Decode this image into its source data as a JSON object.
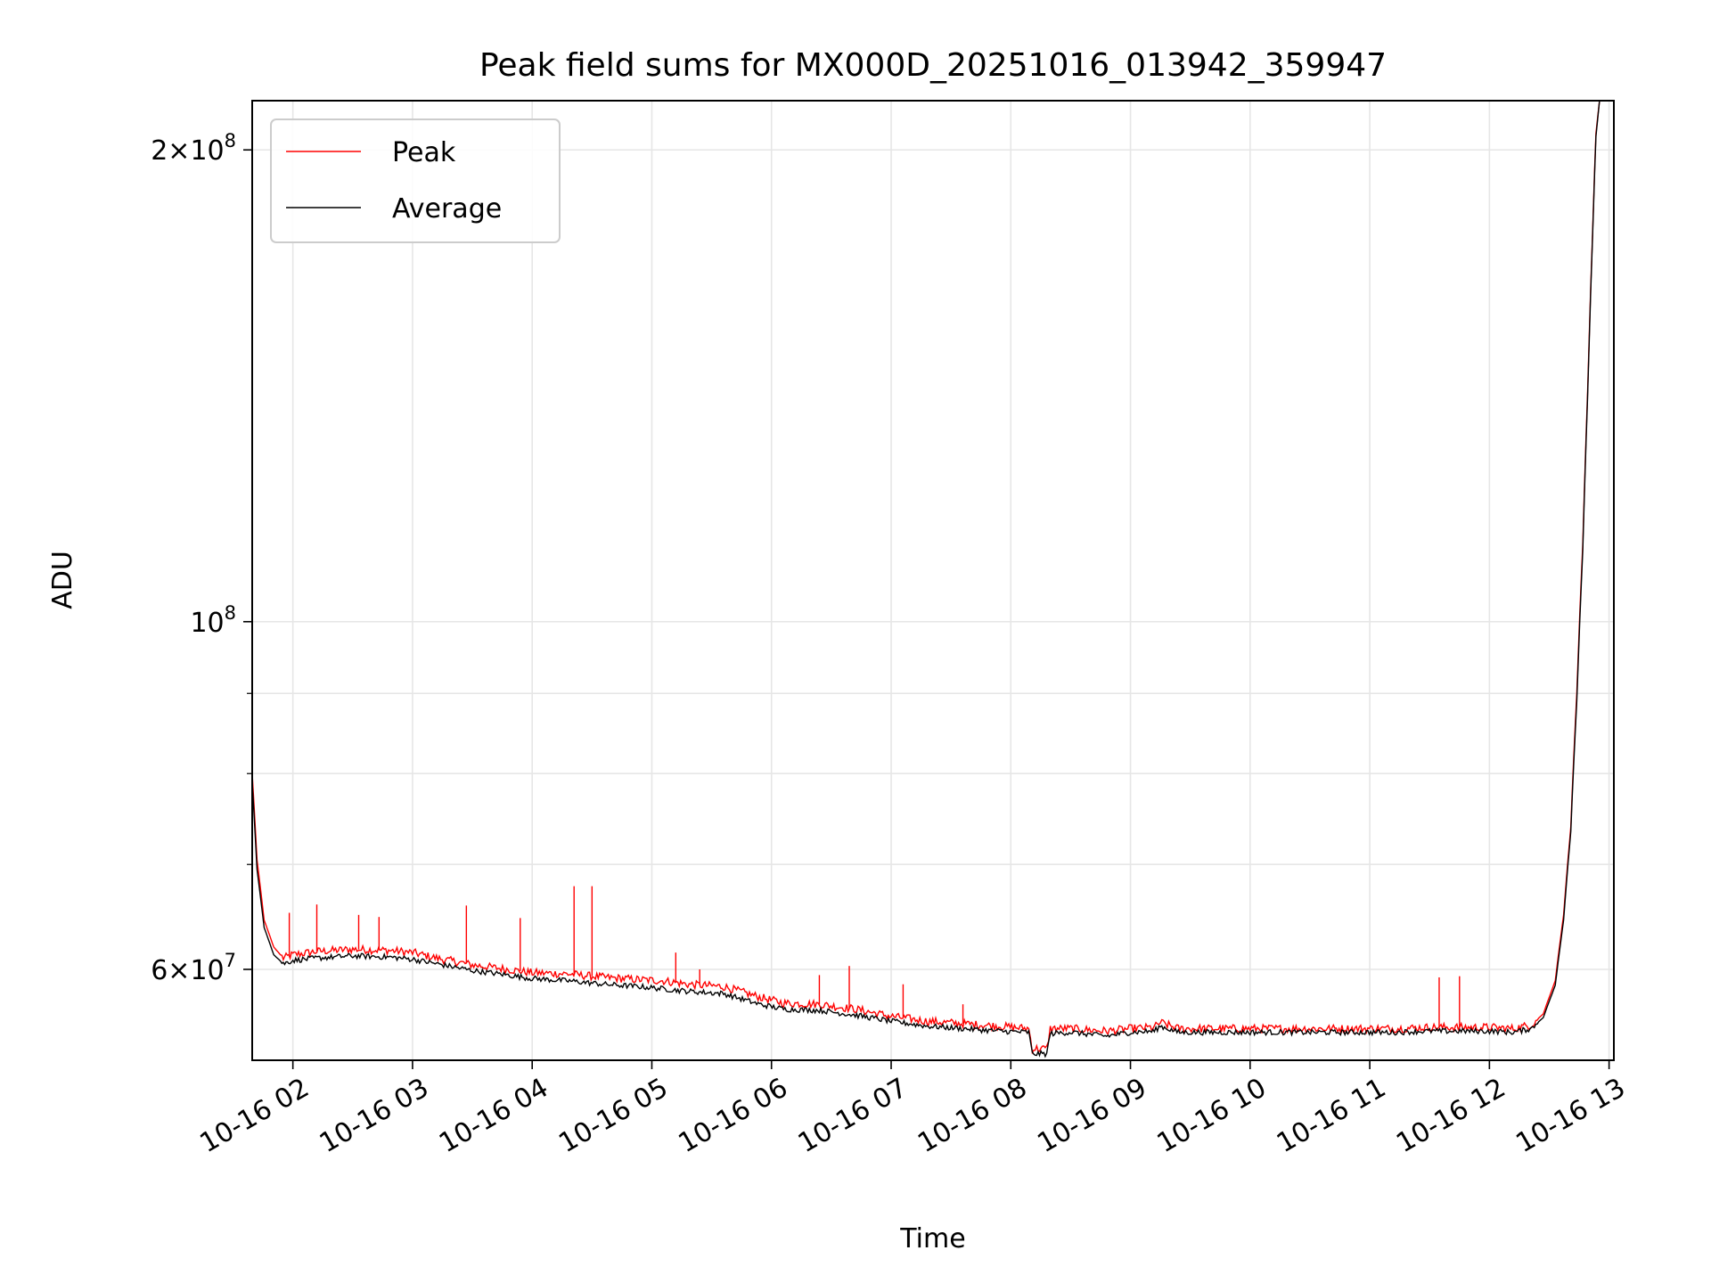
{
  "chart_data": {
    "type": "line",
    "title": "Peak field sums for MX000D_20251016_013942_359947",
    "xlabel": "Time",
    "ylabel": "ADU",
    "yscale": "log",
    "xlim": [
      1.66,
      13.04
    ],
    "ylim": [
      52500000,
      215000000
    ],
    "grid": true,
    "legend_position": "upper-left",
    "x_ticks": [
      {
        "value": 2,
        "label": "10-16 02"
      },
      {
        "value": 3,
        "label": "10-16 03"
      },
      {
        "value": 4,
        "label": "10-16 04"
      },
      {
        "value": 5,
        "label": "10-16 05"
      },
      {
        "value": 6,
        "label": "10-16 06"
      },
      {
        "value": 7,
        "label": "10-16 07"
      },
      {
        "value": 8,
        "label": "10-16 08"
      },
      {
        "value": 9,
        "label": "10-16 09"
      },
      {
        "value": 10,
        "label": "10-16 10"
      },
      {
        "value": 11,
        "label": "10-16 11"
      },
      {
        "value": 12,
        "label": "10-16 12"
      },
      {
        "value": 13,
        "label": "10-16 13"
      }
    ],
    "y_ticks_major": [
      {
        "value": 60000000,
        "mantissa": "6",
        "base": "10",
        "exp": "7"
      },
      {
        "value": 100000000,
        "mantissa": "",
        "base": "10",
        "exp": "8"
      },
      {
        "value": 200000000,
        "mantissa": "2",
        "base": "10",
        "exp": "8"
      }
    ],
    "y_ticks_minor": [
      70000000,
      80000000,
      90000000
    ],
    "series": [
      {
        "name": "Peak",
        "color": "#ff0000",
        "x": [
          1.66,
          1.7,
          1.76,
          1.84,
          1.92,
          2.0,
          2.2,
          2.5,
          2.8,
          3.0,
          3.2,
          3.5,
          3.8,
          4.0,
          4.3,
          4.6,
          4.9,
          5.1,
          5.3,
          5.6,
          5.9,
          6.1,
          6.4,
          6.7,
          7.0,
          7.3,
          7.6,
          7.9,
          8.15,
          8.18,
          8.3,
          8.33,
          8.5,
          8.8,
          9.0,
          9.2,
          9.25,
          9.4,
          9.7,
          10.0,
          10.3,
          10.6,
          10.9,
          11.2,
          11.5,
          11.8,
          12.0,
          12.2,
          12.35,
          12.45,
          12.55,
          12.62,
          12.68,
          12.73,
          12.78,
          12.82,
          12.86,
          12.89,
          12.92
        ],
        "values": [
          80000000,
          70500000,
          64500000,
          62000000,
          61000000,
          61300000,
          61600000,
          61800000,
          61700000,
          61500000,
          61000000,
          60400000,
          60000000,
          59700000,
          59600000,
          59300000,
          59100000,
          59000000,
          58700000,
          58500000,
          57600000,
          57100000,
          57000000,
          56600000,
          56000000,
          55600000,
          55400000,
          55200000,
          55000000,
          53400000,
          53400000,
          55000000,
          55000000,
          54800000,
          55000000,
          55100000,
          55500000,
          55000000,
          55000000,
          55000000,
          55000000,
          55000000,
          55000000,
          55000000,
          55100000,
          55100000,
          55100000,
          55000000,
          55300000,
          56200000,
          59000000,
          65000000,
          74000000,
          90000000,
          112000000,
          140000000,
          175000000,
          205000000,
          215000000
        ],
        "spikes": [
          {
            "x": 1.97,
            "value": 65200000
          },
          {
            "x": 2.2,
            "value": 66000000
          },
          {
            "x": 2.55,
            "value": 65000000
          },
          {
            "x": 2.72,
            "value": 64800000
          },
          {
            "x": 3.45,
            "value": 65900000
          },
          {
            "x": 3.9,
            "value": 64700000
          },
          {
            "x": 4.35,
            "value": 67800000
          },
          {
            "x": 4.5,
            "value": 67800000
          },
          {
            "x": 5.2,
            "value": 61500000
          },
          {
            "x": 5.4,
            "value": 60000000
          },
          {
            "x": 6.4,
            "value": 59500000
          },
          {
            "x": 6.65,
            "value": 60300000
          },
          {
            "x": 7.1,
            "value": 58700000
          },
          {
            "x": 7.6,
            "value": 57000000
          },
          {
            "x": 11.58,
            "value": 59300000
          },
          {
            "x": 11.75,
            "value": 59400000
          }
        ]
      },
      {
        "name": "Average",
        "color": "#000000",
        "x": [
          1.66,
          1.7,
          1.76,
          1.84,
          1.92,
          2.0,
          2.2,
          2.5,
          2.8,
          3.0,
          3.2,
          3.5,
          3.8,
          4.0,
          4.3,
          4.6,
          4.9,
          5.1,
          5.3,
          5.6,
          5.9,
          6.1,
          6.4,
          6.7,
          7.0,
          7.3,
          7.6,
          7.9,
          8.15,
          8.18,
          8.3,
          8.33,
          8.5,
          8.8,
          9.0,
          9.2,
          9.25,
          9.4,
          9.7,
          10.0,
          10.3,
          10.6,
          10.9,
          11.2,
          11.5,
          11.8,
          12.0,
          12.2,
          12.35,
          12.45,
          12.55,
          12.62,
          12.68,
          12.73,
          12.78,
          12.82,
          12.86,
          12.89,
          12.92
        ],
        "values": [
          79000000,
          69500000,
          63800000,
          61300000,
          60500000,
          60800000,
          61000000,
          61200000,
          61100000,
          60900000,
          60500000,
          59900000,
          59500000,
          59200000,
          59000000,
          58700000,
          58500000,
          58300000,
          58100000,
          57900000,
          57000000,
          56600000,
          56500000,
          56100000,
          55600000,
          55200000,
          55000000,
          54800000,
          54700000,
          53000000,
          53000000,
          54600000,
          54700000,
          54400000,
          54700000,
          54800000,
          55200000,
          54700000,
          54700000,
          54700000,
          54700000,
          54700000,
          54700000,
          54700000,
          54800000,
          54800000,
          54800000,
          54700000,
          55000000,
          55900000,
          58600000,
          64500000,
          73500000,
          89000000,
          111000000,
          139000000,
          174000000,
          204000000,
          215000000
        ]
      }
    ]
  }
}
